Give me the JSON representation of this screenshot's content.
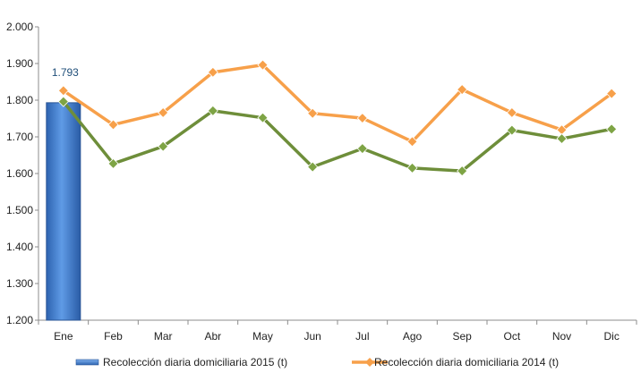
{
  "chart_data": {
    "type": "bar+line",
    "categories": [
      "Ene",
      "Feb",
      "Mar",
      "Abr",
      "May",
      "Jun",
      "Jul",
      "Ago",
      "Sep",
      "Oct",
      "Nov",
      "Dic"
    ],
    "ylim": [
      1200,
      2000
    ],
    "yticks": [
      1200,
      1300,
      1400,
      1500,
      1600,
      1700,
      1800,
      1900,
      2000
    ],
    "ytick_labels": [
      "1.200",
      "1.300",
      "1.400",
      "1.500",
      "1.600",
      "1.700",
      "1.800",
      "1.900",
      "2.000"
    ],
    "grid": false,
    "legend_position": "bottom",
    "bar_series": {
      "name": "Recolección diaria domiciliaria 2015 (t)",
      "color": "#4a86d4",
      "values": [
        1793,
        null,
        null,
        null,
        null,
        null,
        null,
        null,
        null,
        null,
        null,
        null
      ],
      "data_label": "1.793"
    },
    "line_series": [
      {
        "name": "Recolección diaria domiciliaria 2014 (t)",
        "color": "#f7a04a",
        "marker_color": "#f7a04a",
        "values": [
          1826,
          1733,
          1766,
          1876,
          1896,
          1764,
          1751,
          1687,
          1829,
          1766,
          1719,
          1818
        ]
      },
      {
        "name": "",
        "color": "#6e8e3a",
        "marker_color": "#7ea445",
        "values": [
          1796,
          1627,
          1674,
          1771,
          1752,
          1618,
          1668,
          1615,
          1607,
          1718,
          1695,
          1721
        ]
      }
    ]
  }
}
